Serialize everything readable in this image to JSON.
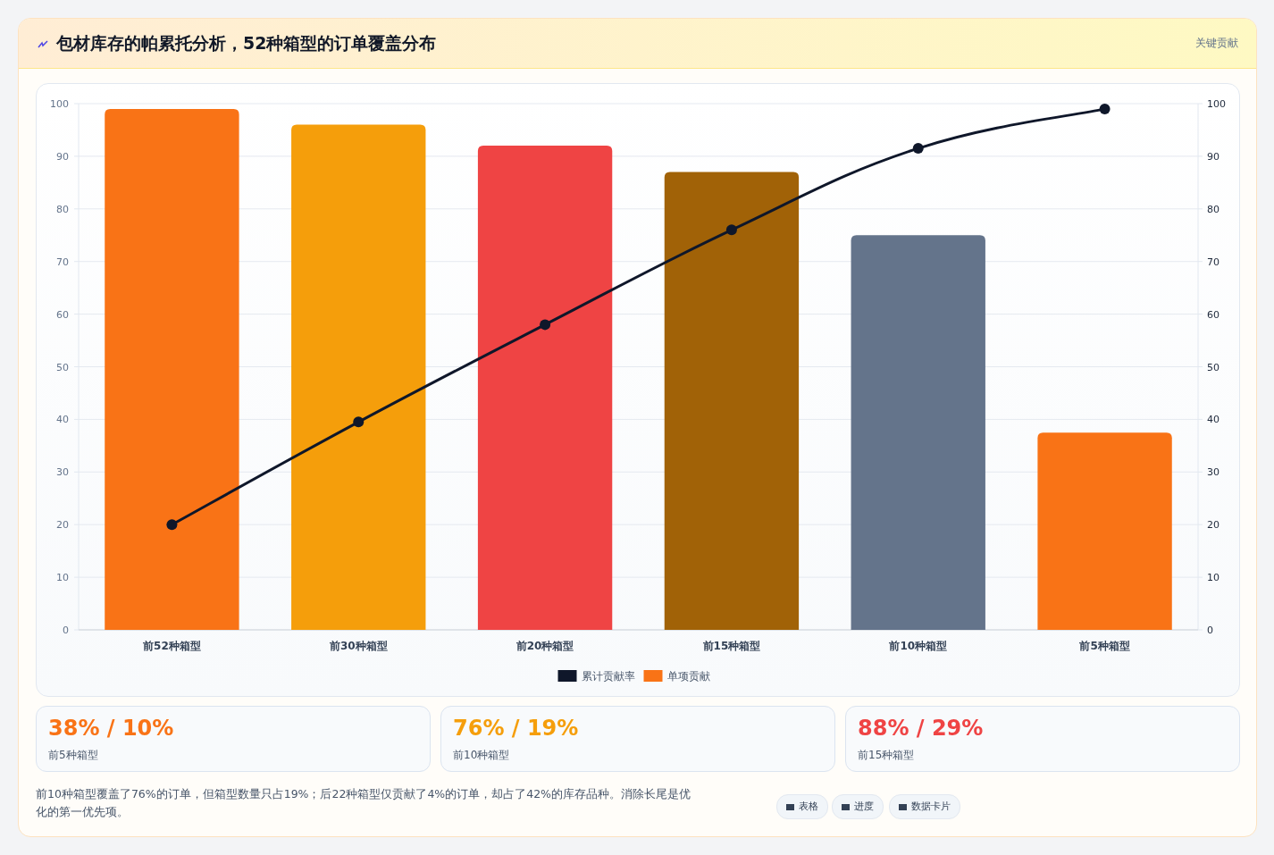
{
  "chart_data": [
    {
      "type": "bar",
      "title": "包材库存的帕累托分析，52种箱型的订单覆盖分布",
      "annotations": [
        "关键贡献"
      ],
      "categories": [
        "前52种箱型",
        "前30种箱型",
        "前20种箱型",
        "前15种箱型",
        "前10种箱型",
        "前5种箱型"
      ],
      "series": [
        {
          "name": "累计贡献率",
          "type": "line",
          "axis": "y2",
          "color": "#0f172a",
          "marker": "circle",
          "line_style": "solid",
          "values": [
            20,
            39.5,
            58,
            76,
            91.5,
            99
          ]
        },
        {
          "name": "单项贡献",
          "type": "bar",
          "color": "#f97316",
          "colors": [
            "#f97316",
            "#f59e0b",
            "#ef4444",
            "#a16207",
            "#64748b",
            "#f97316"
          ],
          "values": [
            99,
            96,
            92,
            87,
            75,
            37.5
          ]
        }
      ],
      "ylim": [
        0,
        100
      ],
      "yticks": [
        0,
        10,
        20,
        30,
        40,
        50,
        60,
        70,
        80,
        90,
        100
      ],
      "y2lim": [
        0,
        100
      ],
      "y2ticks": [
        0,
        10,
        20,
        30,
        40,
        50,
        60,
        70,
        80,
        90,
        100
      ],
      "grid": "y",
      "legend": "bottom"
    },
    {
      "type": "other",
      "categories": [
        "前5种箱型",
        "前10种箱型",
        "前15种箱型"
      ],
      "value_labels": [
        "38% / 10%",
        "76% / 19%",
        "88% / 29%"
      ],
      "annotations": [
        "前10种箱型覆盖了76%的订单，但箱型数量只占19%；后22种箱型仅贡献了4%的订单，却占了42%的库存品种。消除长尾是优化的第一优先项。",
        "表格",
        "进度",
        "数据卡片"
      ]
    }
  ]
}
